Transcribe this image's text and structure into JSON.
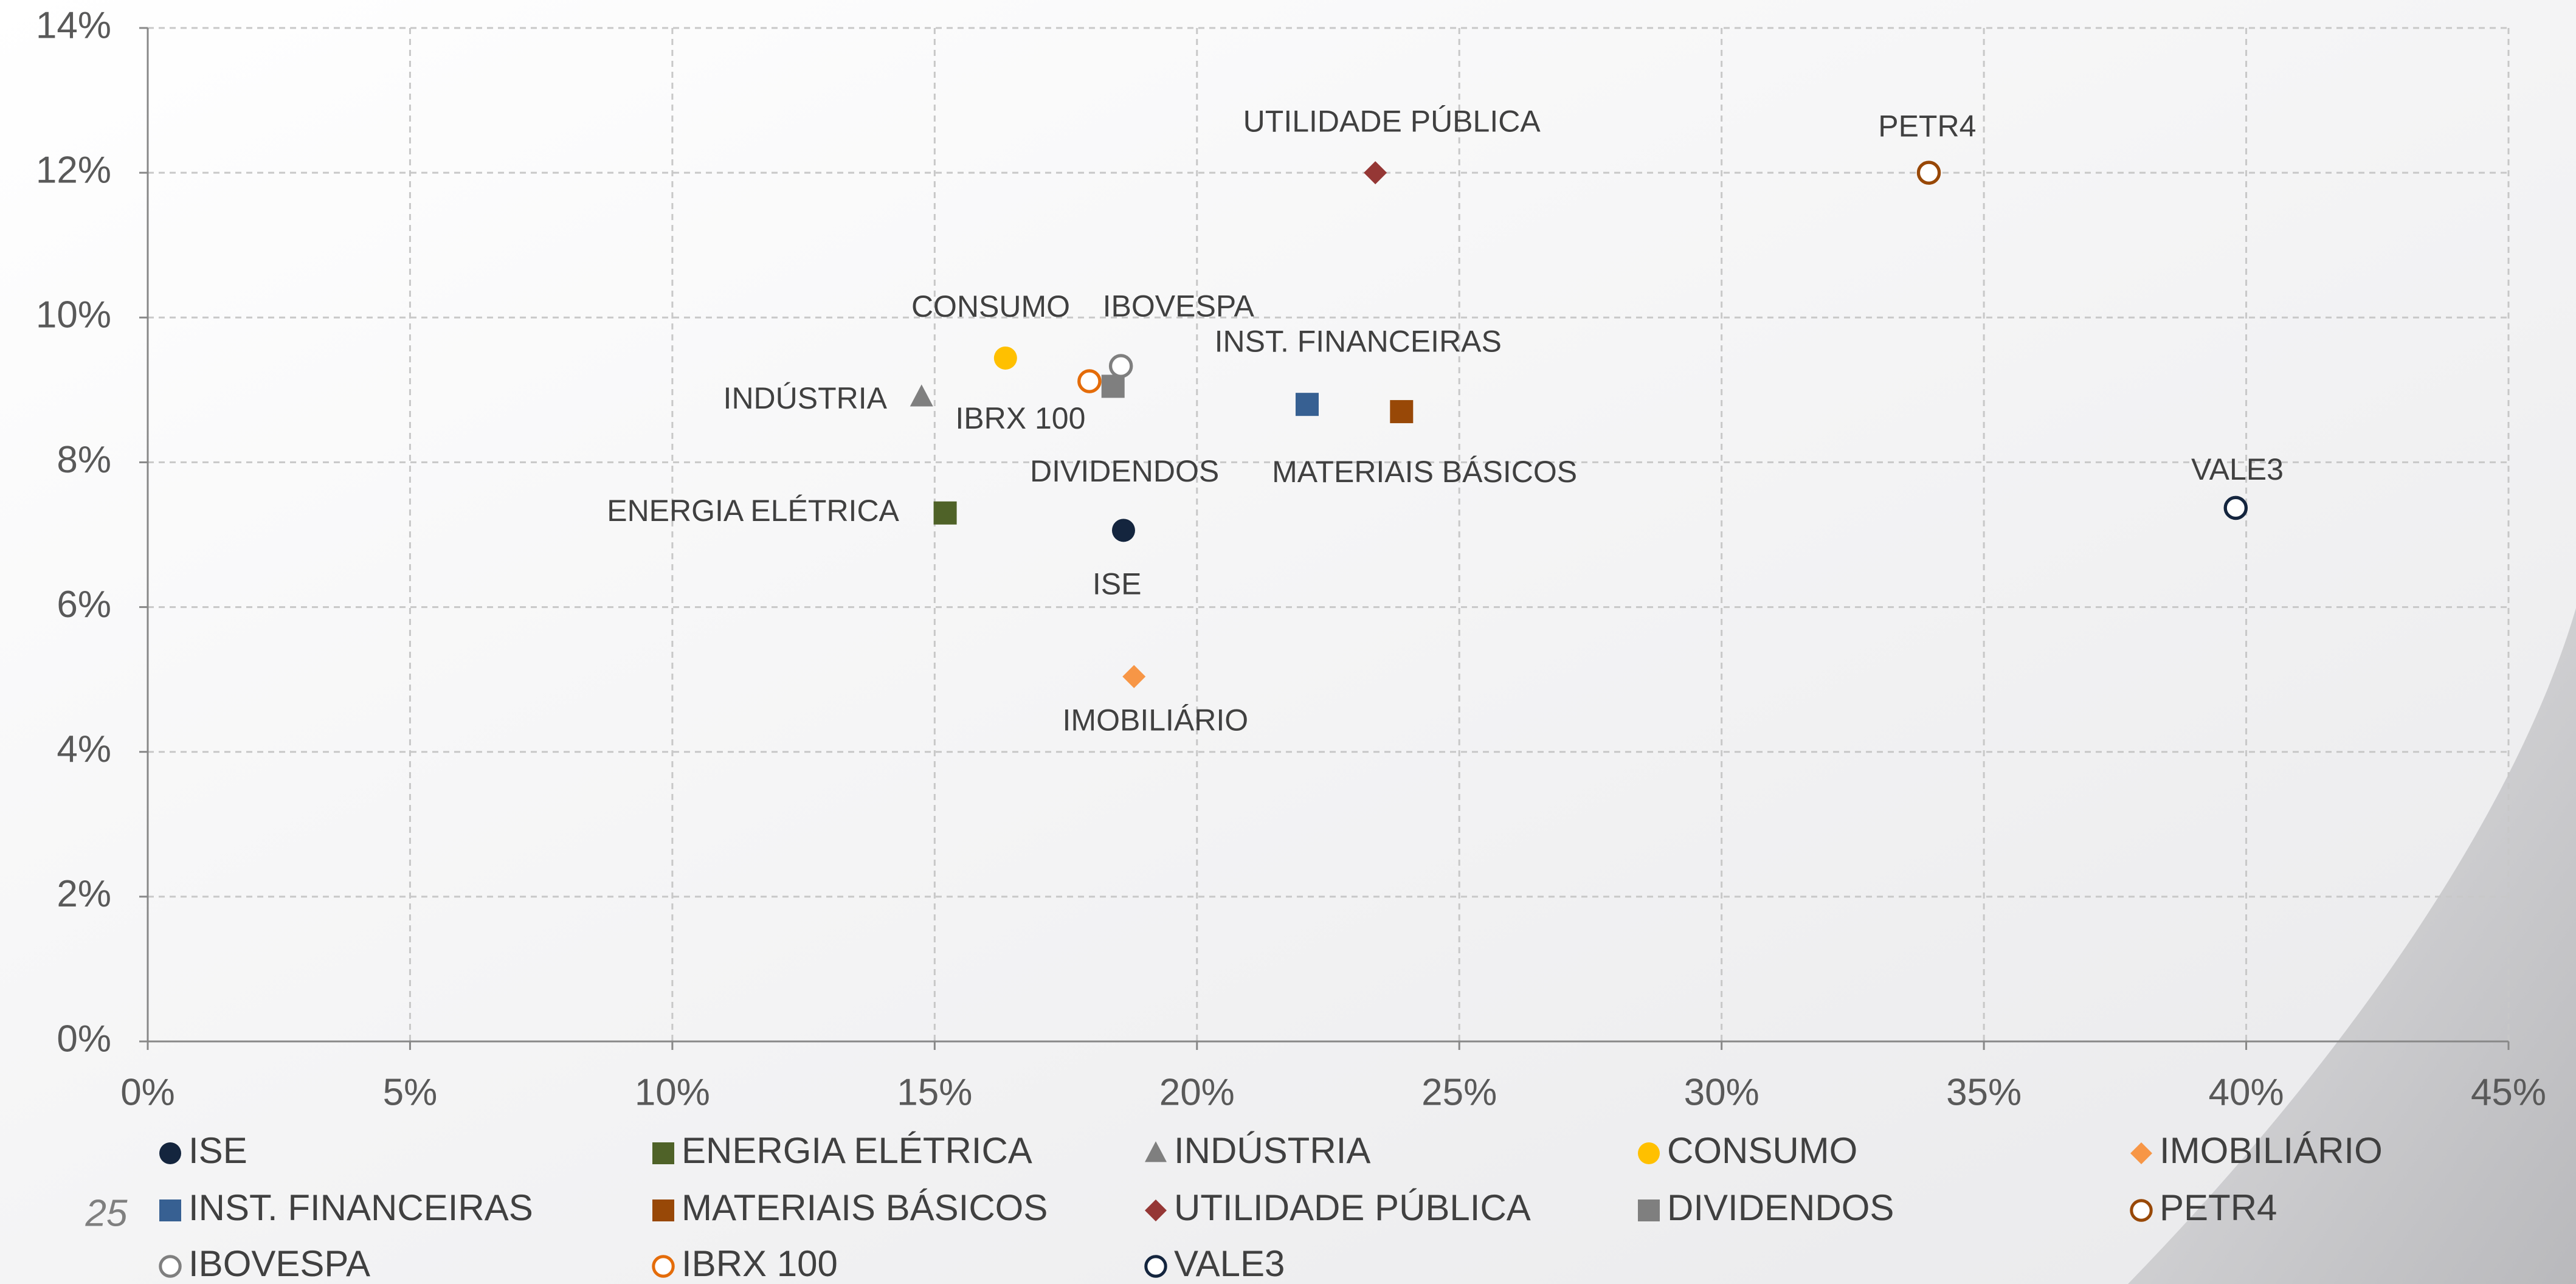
{
  "chart_data": {
    "type": "scatter",
    "page_number": "25",
    "xlim": [
      0,
      45
    ],
    "ylim": [
      0,
      14
    ],
    "grid": true,
    "legend": "bottom",
    "xticks": [
      {
        "value": 0,
        "label": "0%"
      },
      {
        "value": 5,
        "label": "5%"
      },
      {
        "value": 10,
        "label": "10%"
      },
      {
        "value": 15,
        "label": "15%"
      },
      {
        "value": 20,
        "label": "20%"
      },
      {
        "value": 25,
        "label": "25%"
      },
      {
        "value": 30,
        "label": "30%"
      },
      {
        "value": 35,
        "label": "35%"
      },
      {
        "value": 40,
        "label": "40%"
      },
      {
        "value": 45,
        "label": "45%"
      }
    ],
    "yticks": [
      {
        "value": 0,
        "label": "0%"
      },
      {
        "value": 2,
        "label": "2%"
      },
      {
        "value": 4,
        "label": "4%"
      },
      {
        "value": 6,
        "label": "6%"
      },
      {
        "value": 8,
        "label": "8%"
      },
      {
        "value": 10,
        "label": "10%"
      },
      {
        "value": 12,
        "label": "12%"
      },
      {
        "value": 14,
        "label": "14%"
      }
    ],
    "series": [
      {
        "name": "ISE",
        "color": "#14253e",
        "marker": "circle",
        "x": 18.6,
        "y": 7.06
      },
      {
        "name": "ENERGIA ELÉTRICA",
        "color": "#4f6228",
        "marker": "square",
        "x": 15.2,
        "y": 7.3
      },
      {
        "name": "INDÚSTRIA",
        "color": "#7f7f7f",
        "marker": "triangle",
        "x": 14.75,
        "y": 8.9
      },
      {
        "name": "CONSUMO",
        "color": "#ffc000",
        "marker": "circle",
        "x": 16.35,
        "y": 9.44
      },
      {
        "name": "IMOBILIÁRIO",
        "color": "#f79646",
        "marker": "diamond",
        "x": 18.8,
        "y": 5.04
      },
      {
        "name": "INST. FINANCEIRAS",
        "color": "#376092",
        "marker": "square",
        "x": 22.1,
        "y": 8.8
      },
      {
        "name": "MATERIAIS BÁSICOS",
        "color": "#984807",
        "marker": "square",
        "x": 23.9,
        "y": 8.7
      },
      {
        "name": "UTILIDADE PÚBLICA",
        "color": "#953735",
        "marker": "diamond",
        "x": 23.4,
        "y": 12.0
      },
      {
        "name": "DIVIDENDOS",
        "color": "#7f7f7f",
        "marker": "square",
        "x": 18.4,
        "y": 9.05
      },
      {
        "name": "PETR4",
        "color": "#984807",
        "marker": "open-circle",
        "x": 33.95,
        "y": 12.0
      },
      {
        "name": "IBOVESPA",
        "color": "#7f7f7f",
        "marker": "open-circle",
        "x": 18.55,
        "y": 9.33
      },
      {
        "name": "IBRX 100",
        "color": "#e46c0a",
        "marker": "open-circle",
        "x": 17.95,
        "y": 9.12
      },
      {
        "name": "VALE3",
        "color": "#14253e",
        "marker": "open-circle",
        "x": 39.8,
        "y": 7.37
      }
    ]
  }
}
